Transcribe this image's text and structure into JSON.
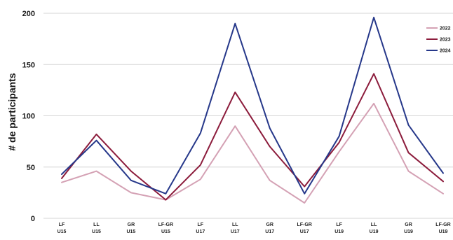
{
  "chart_data": {
    "type": "line",
    "title": "",
    "xlabel": "",
    "ylabel": "# de participants",
    "ylim": [
      0,
      200
    ],
    "yticks": [
      0,
      50,
      100,
      150,
      200
    ],
    "grid": true,
    "legend_position": "top-right",
    "categories": [
      [
        "LF",
        "U15"
      ],
      [
        "LL",
        "U15"
      ],
      [
        "GR",
        "U15"
      ],
      [
        "LF-GR",
        "U15"
      ],
      [
        "LF",
        "U17"
      ],
      [
        "LL",
        "U17"
      ],
      [
        "GR",
        "U17"
      ],
      [
        "LF-GR",
        "U17"
      ],
      [
        "LF",
        "U19"
      ],
      [
        "LL",
        "U19"
      ],
      [
        "GR",
        "U19"
      ],
      [
        "LF-GR",
        "U19"
      ]
    ],
    "series": [
      {
        "name": "2022",
        "color": "#d4a1b4",
        "values": [
          35,
          46,
          25,
          18,
          38,
          90,
          37,
          15,
          65,
          112,
          46,
          24
        ]
      },
      {
        "name": "2023",
        "color": "#8c1c3c",
        "values": [
          39,
          82,
          46,
          18,
          52,
          123,
          70,
          31,
          74,
          141,
          64,
          36
        ]
      },
      {
        "name": "2024",
        "color": "#26388a",
        "values": [
          43,
          76,
          37,
          24,
          83,
          190,
          88,
          24,
          80,
          196,
          91,
          44
        ]
      }
    ]
  }
}
